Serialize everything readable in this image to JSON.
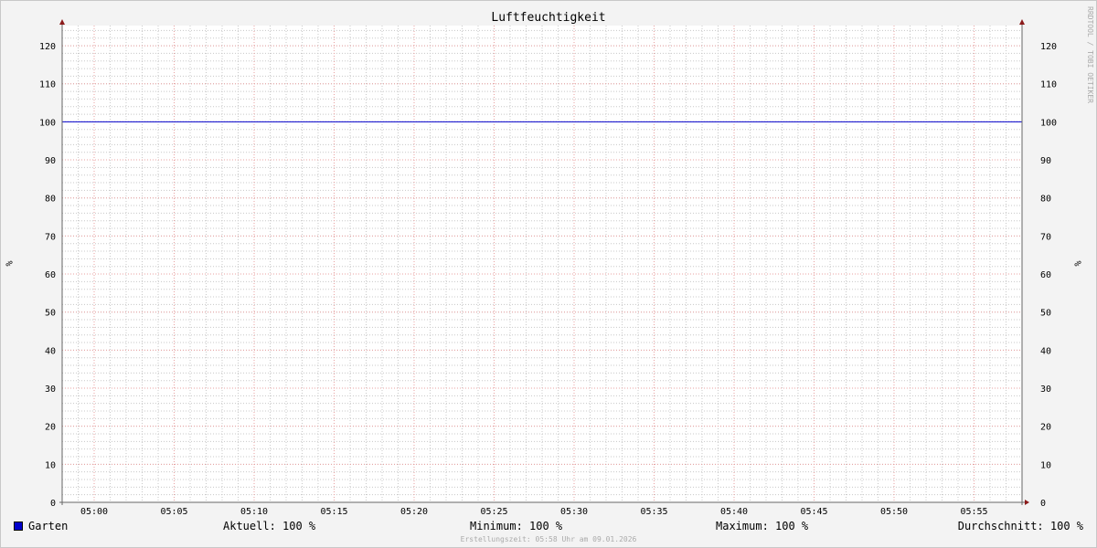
{
  "chart_data": {
    "type": "line",
    "title": "Luftfeuchtigkeit",
    "ylabel": "%",
    "ylim": [
      0,
      125.3
    ],
    "xlim": [
      "04:58",
      "05:58"
    ],
    "x_ticks": [
      "05:00",
      "05:05",
      "05:10",
      "05:15",
      "05:20",
      "05:25",
      "05:30",
      "05:35",
      "05:40",
      "05:45",
      "05:50",
      "05:55"
    ],
    "y_ticks": [
      0,
      10,
      20,
      30,
      40,
      50,
      60,
      70,
      80,
      90,
      100,
      110,
      120
    ],
    "grid": true,
    "series": [
      {
        "name": "Garten",
        "color": "#0000cc",
        "x": [
          "04:58",
          "05:58"
        ],
        "y": [
          100,
          100
        ]
      }
    ],
    "legend": {
      "placement": "bottom",
      "name": "Garten",
      "aktuell": "Aktuell: 100 %",
      "minimum": "Minimum: 100 %",
      "maximum": "Maximum: 100 %",
      "durchschnitt": "Durchschnitt: 100 %"
    },
    "footer": "Erstellungszeit: 05:58 Uhr am 09.01.2026",
    "watermark": "RRDTOOL / TOBI OETIKER"
  }
}
